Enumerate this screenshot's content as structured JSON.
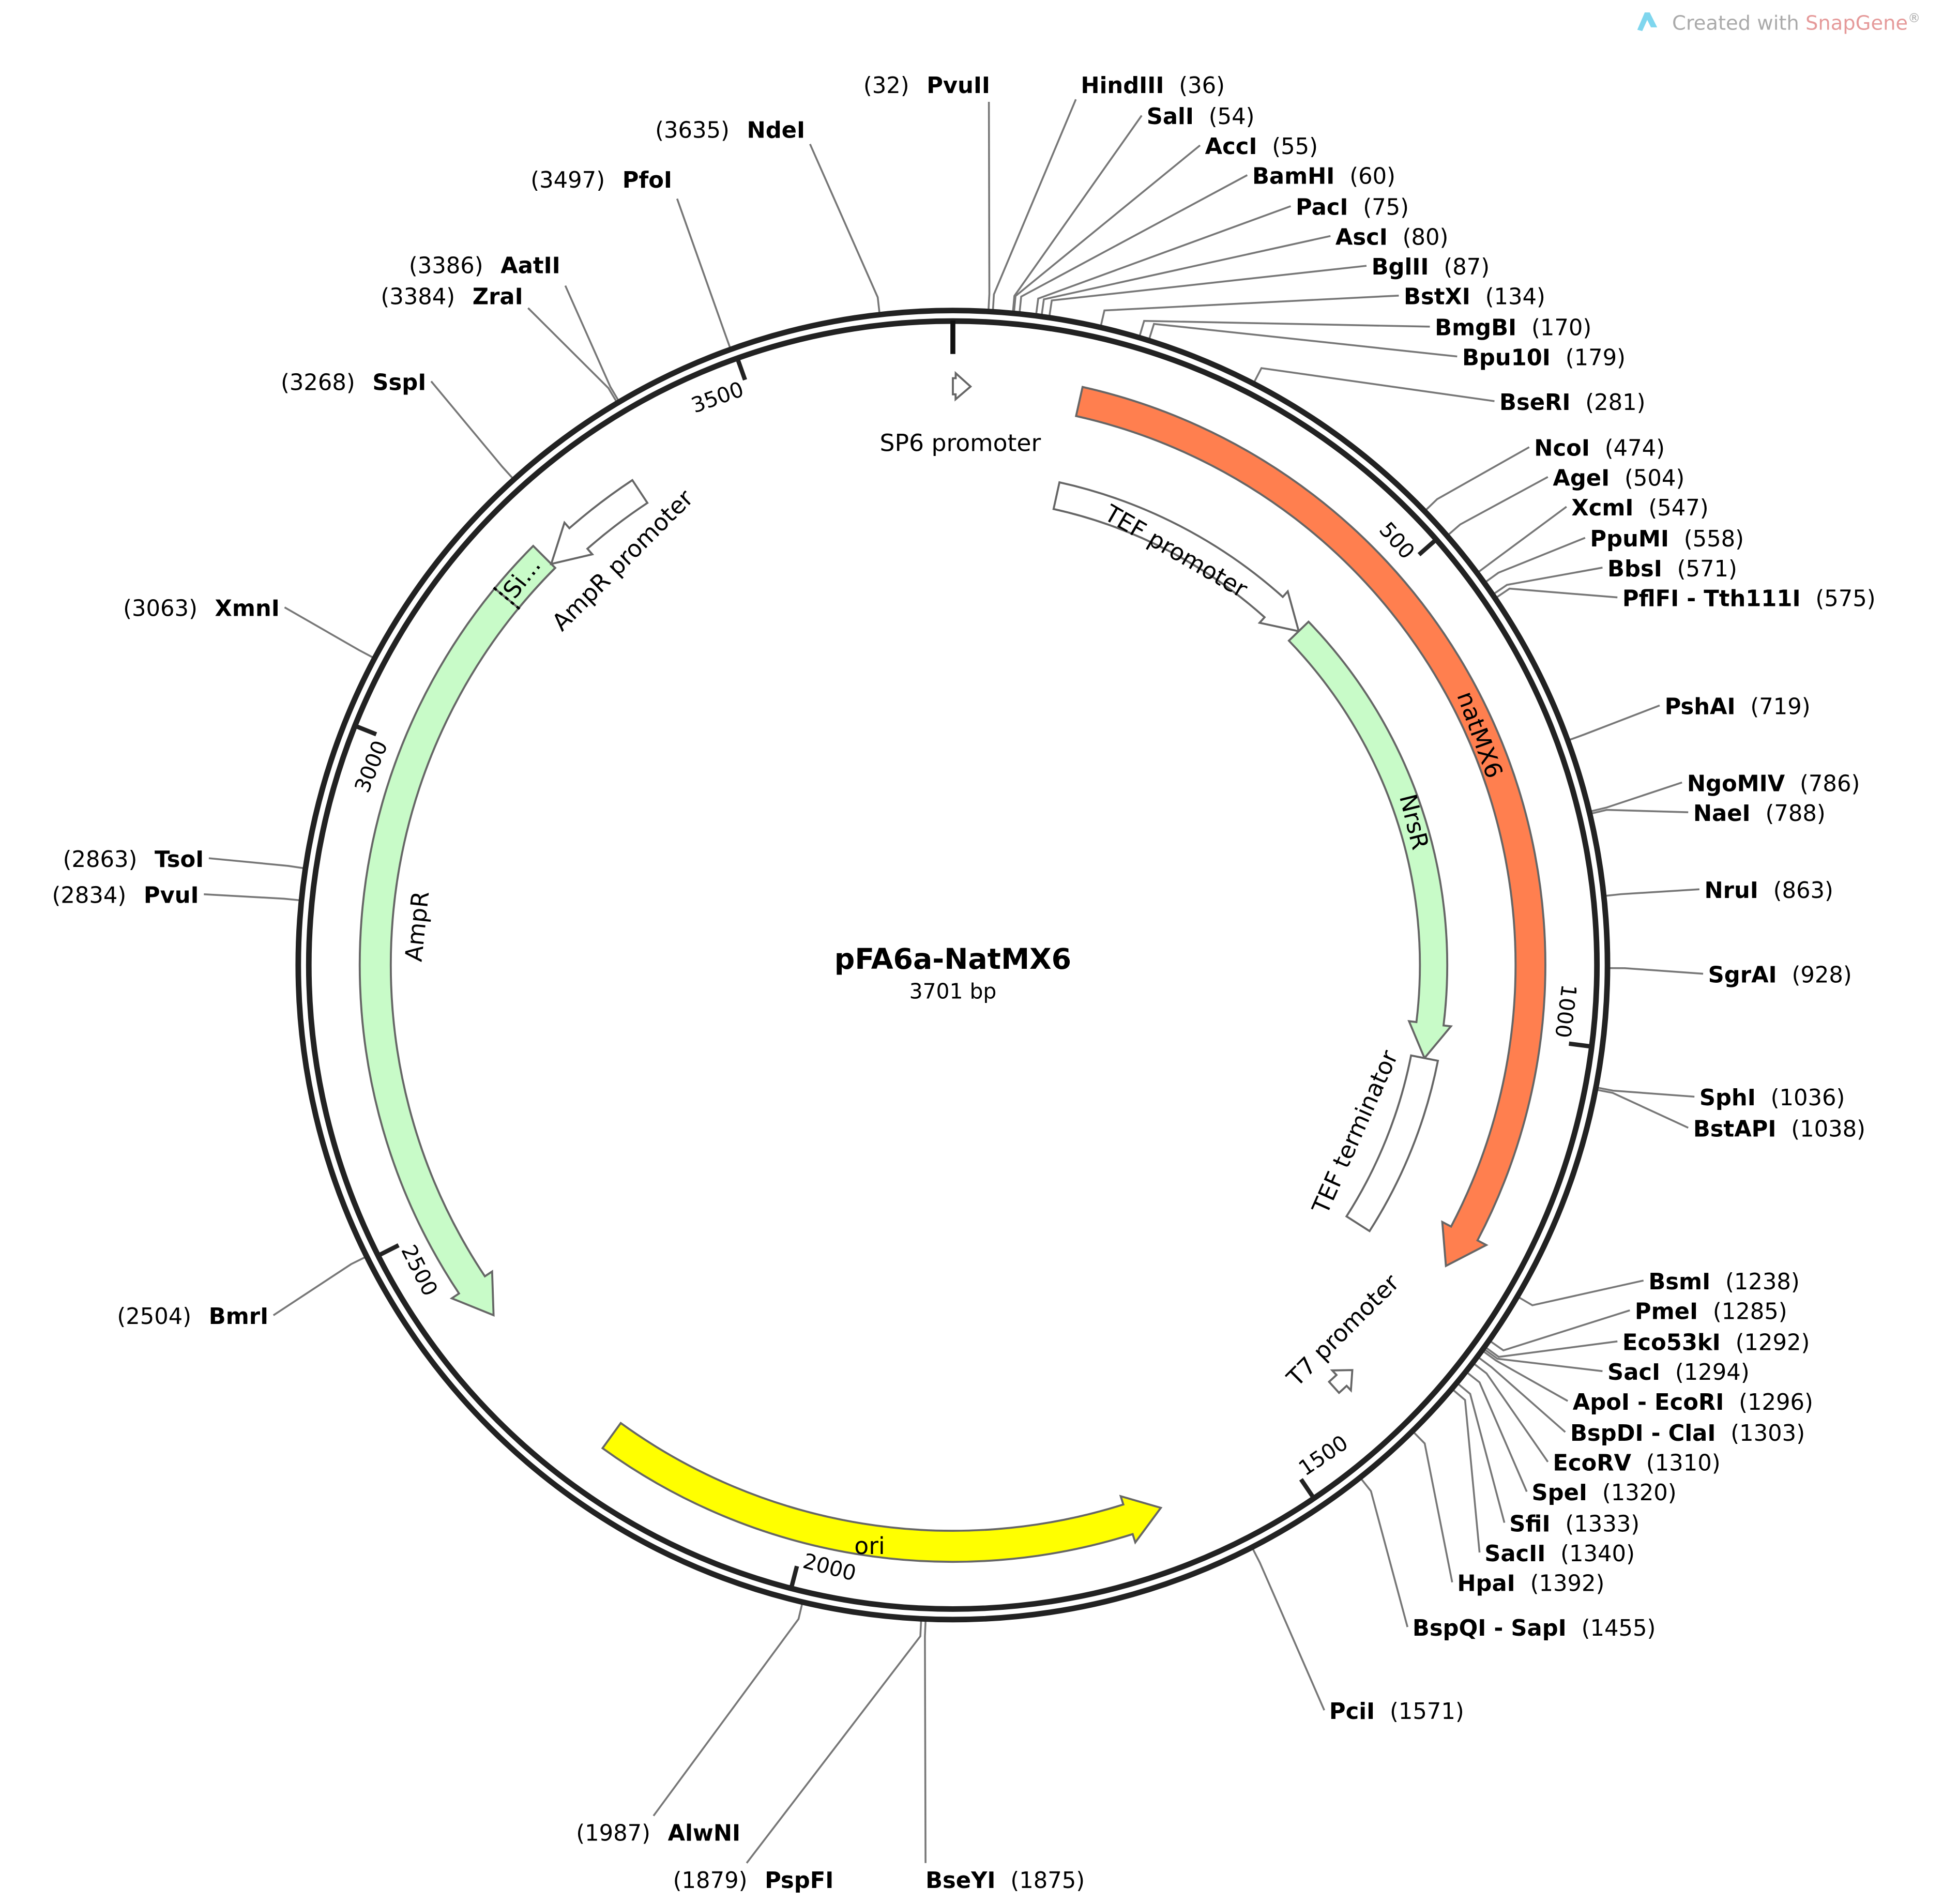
{
  "watermark": {
    "prefix": "Created with ",
    "brand": "SnapGene",
    "suffix": "®"
  },
  "plasmid": {
    "name": "pFA6a-NatMX6",
    "length_label": "3701 bp",
    "length_bp": 3701
  },
  "tick_labels": [
    "500",
    "1000",
    "1500",
    "2000",
    "2500",
    "3000",
    "3500"
  ],
  "colors": {
    "natMX6": "#ff7f4f",
    "marker": "#c8fbc8",
    "ori": "#ffff00",
    "promoter": "#ffffff",
    "outline": "#666666",
    "backbone": "#222222"
  },
  "features": [
    {
      "label": "SP6 promoter",
      "start": 0,
      "end": 18,
      "direction": "forward",
      "color": "#ffffff"
    },
    {
      "label": "natMX6",
      "start": 130,
      "end": 1248,
      "direction": "forward",
      "color": "#ff7f4f"
    },
    {
      "label": "TEF promoter",
      "start": 128,
      "end": 473,
      "direction": "forward",
      "color": "#ffffff"
    },
    {
      "label": "NrsR",
      "start": 473,
      "end": 1040,
      "direction": "forward",
      "color": "#c8fbc8"
    },
    {
      "label": "TEF terminator",
      "start": 1040,
      "end": 1260,
      "direction": "none",
      "color": "#ffffff"
    },
    {
      "label": "T7 promoter",
      "start": 1392,
      "end": 1418,
      "direction": "reverse",
      "color": "#ffffff"
    },
    {
      "label": "ori",
      "start": 1635,
      "end": 2220,
      "direction": "reverse",
      "color": "#ffff00"
    },
    {
      "label": "AmpR",
      "start": 2392,
      "end": 3238,
      "direction": "reverse",
      "color": "#c8fbc8"
    },
    {
      "label": "Si...",
      "start": 3181,
      "end": 3238,
      "direction": "none",
      "color": "#c8fbc8"
    },
    {
      "label": "AmpR promoter",
      "start": 3238,
      "end": 3357,
      "direction": "reverse",
      "color": "#ffffff"
    }
  ],
  "sites": [
    {
      "name": "PvuII",
      "pos": "(32)",
      "bp": 32
    },
    {
      "name": "HindIII",
      "pos": "(36)",
      "bp": 36
    },
    {
      "name": "SalI",
      "pos": "(54)",
      "bp": 54
    },
    {
      "name": "AccI",
      "pos": "(55)",
      "bp": 55
    },
    {
      "name": "BamHI",
      "pos": "(60)",
      "bp": 60
    },
    {
      "name": "PacI",
      "pos": "(75)",
      "bp": 75
    },
    {
      "name": "AscI",
      "pos": "(80)",
      "bp": 80
    },
    {
      "name": "BglII",
      "pos": "(87)",
      "bp": 87
    },
    {
      "name": "BstXI",
      "pos": "(134)",
      "bp": 134
    },
    {
      "name": "BmgBI",
      "pos": "(170)",
      "bp": 170
    },
    {
      "name": "Bpu10I",
      "pos": "(179)",
      "bp": 179
    },
    {
      "name": "BseRI",
      "pos": "(281)",
      "bp": 281
    },
    {
      "name": "NcoI",
      "pos": "(474)",
      "bp": 474
    },
    {
      "name": "AgeI",
      "pos": "(504)",
      "bp": 504
    },
    {
      "name": "XcmI",
      "pos": "(547)",
      "bp": 547
    },
    {
      "name": "PpuMI",
      "pos": "(558)",
      "bp": 558
    },
    {
      "name": "BbsI",
      "pos": "(571)",
      "bp": 571
    },
    {
      "name": "PflFI - Tth111I",
      "pos": "(575)",
      "bp": 575
    },
    {
      "name": "PshAI",
      "pos": "(719)",
      "bp": 719
    },
    {
      "name": "NgoMIV",
      "pos": "(786)",
      "bp": 786
    },
    {
      "name": "NaeI",
      "pos": "(788)",
      "bp": 788
    },
    {
      "name": "NruI",
      "pos": "(863)",
      "bp": 863
    },
    {
      "name": "SgrAI",
      "pos": "(928)",
      "bp": 928
    },
    {
      "name": "SphI",
      "pos": "(1036)",
      "bp": 1036
    },
    {
      "name": "BstAPI",
      "pos": "(1038)",
      "bp": 1038
    },
    {
      "name": "BsmI",
      "pos": "(1238)",
      "bp": 1238
    },
    {
      "name": "PmeI",
      "pos": "(1285)",
      "bp": 1285
    },
    {
      "name": "Eco53kI",
      "pos": "(1292)",
      "bp": 1292
    },
    {
      "name": "SacI",
      "pos": "(1294)",
      "bp": 1294
    },
    {
      "name": "ApoI - EcoRI",
      "pos": "(1296)",
      "bp": 1296
    },
    {
      "name": "BspDI - ClaI",
      "pos": "(1303)",
      "bp": 1303
    },
    {
      "name": "EcoRV",
      "pos": "(1310)",
      "bp": 1310
    },
    {
      "name": "SpeI",
      "pos": "(1320)",
      "bp": 1320
    },
    {
      "name": "SfiI",
      "pos": "(1333)",
      "bp": 1333
    },
    {
      "name": "SacII",
      "pos": "(1340)",
      "bp": 1340
    },
    {
      "name": "HpaI",
      "pos": "(1392)",
      "bp": 1392
    },
    {
      "name": "BspQI - SapI",
      "pos": "(1455)",
      "bp": 1455
    },
    {
      "name": "PciI",
      "pos": "(1571)",
      "bp": 1571
    },
    {
      "name": "BseYI",
      "pos": "(1875)",
      "bp": 1875
    },
    {
      "name": "PspFI",
      "pos": "(1879)",
      "bp": 1879
    },
    {
      "name": "AlwNI",
      "pos": "(1987)",
      "bp": 1987
    },
    {
      "name": "BmrI",
      "pos": "(2504)",
      "bp": 2504
    },
    {
      "name": "PvuI",
      "pos": "(2834)",
      "bp": 2834
    },
    {
      "name": "TsoI",
      "pos": "(2863)",
      "bp": 2863
    },
    {
      "name": "XmnI",
      "pos": "(3063)",
      "bp": 3063
    },
    {
      "name": "SspI",
      "pos": "(3268)",
      "bp": 3268
    },
    {
      "name": "ZraI",
      "pos": "(3384)",
      "bp": 3384
    },
    {
      "name": "AatII",
      "pos": "(3386)",
      "bp": 3386
    },
    {
      "name": "PfoI",
      "pos": "(3497)",
      "bp": 3497
    },
    {
      "name": "NdeI",
      "pos": "(3635)",
      "bp": 3635
    }
  ]
}
